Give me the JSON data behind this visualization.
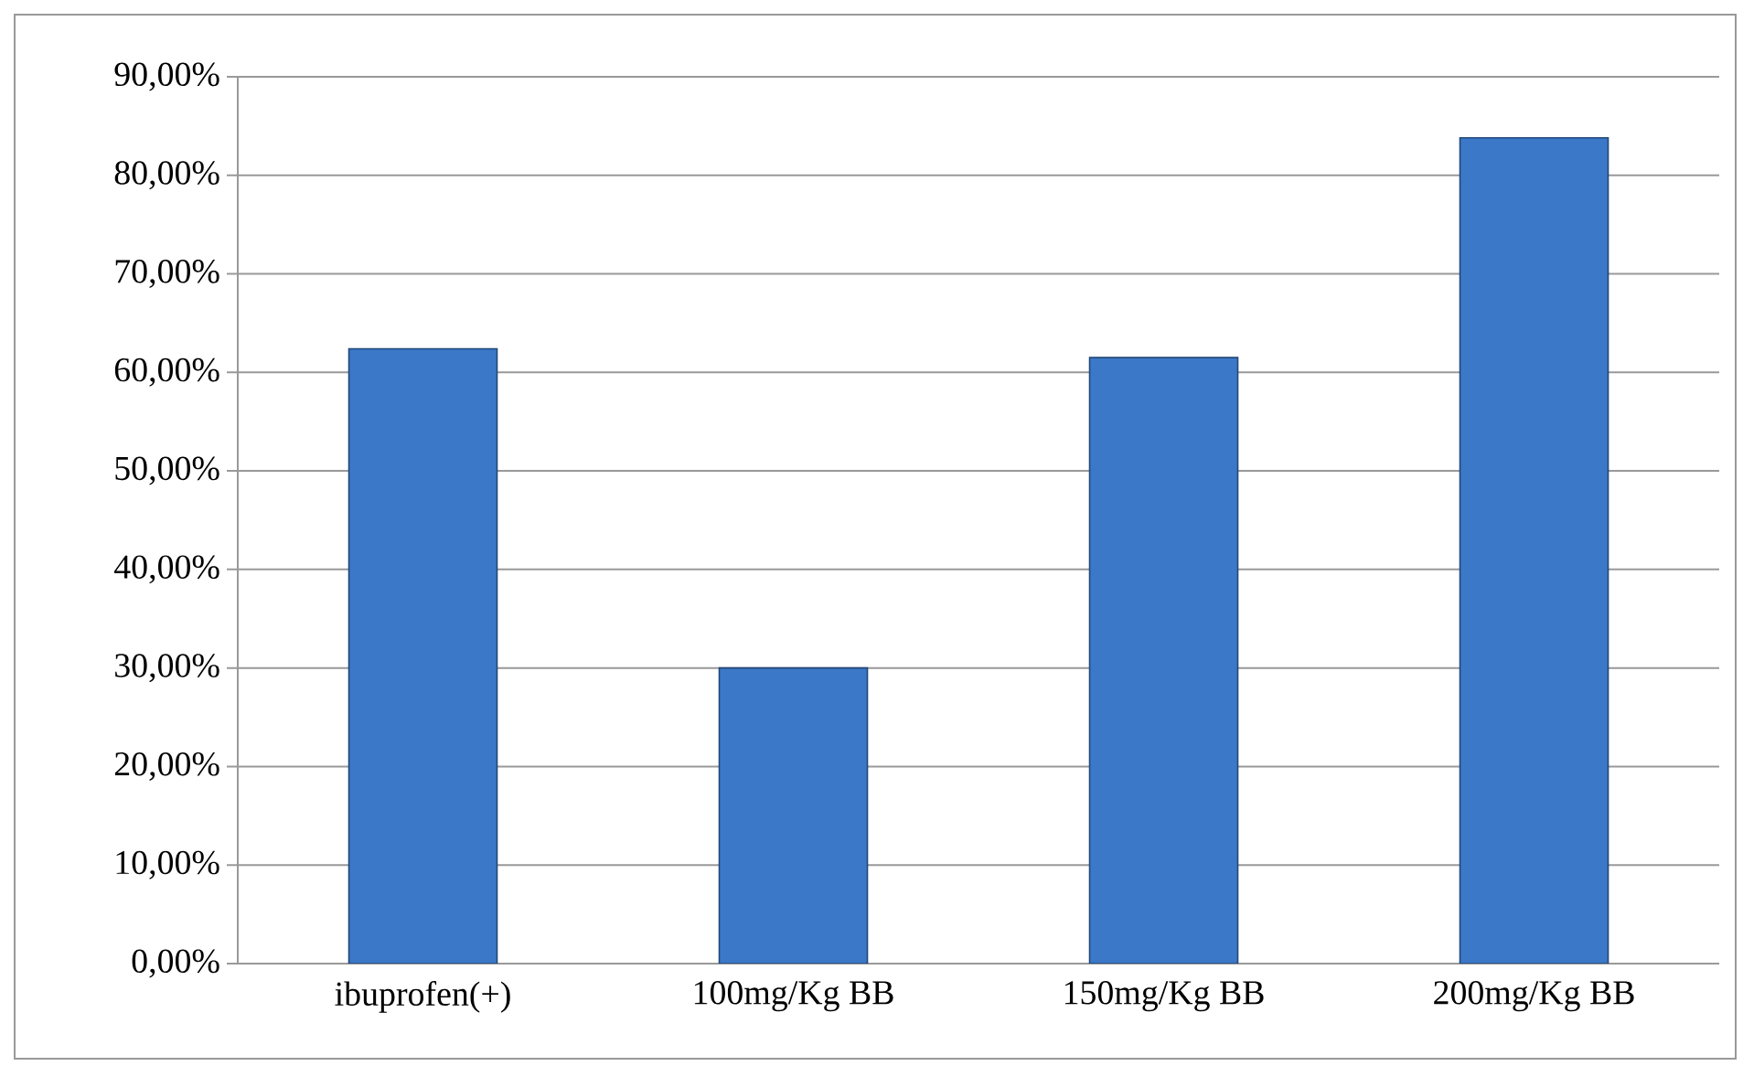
{
  "chart_data": {
    "type": "bar",
    "categories": [
      "ibuprofen(+)",
      "100mg/Kg BB",
      "150mg/Kg BB",
      "200mg/Kg BB"
    ],
    "values": [
      62.4,
      30,
      61.5,
      83.8
    ],
    "color": "#3b78c8",
    "ylim": [
      0,
      90
    ],
    "yticks": [
      {
        "value": 0,
        "label": "0,00%"
      },
      {
        "value": 10,
        "label": "10,00%"
      },
      {
        "value": 20,
        "label": "20,00%"
      },
      {
        "value": 30,
        "label": "30,00%"
      },
      {
        "value": 40,
        "label": "40,00%"
      },
      {
        "value": 50,
        "label": "50,00%"
      },
      {
        "value": 60,
        "label": "60,00%"
      },
      {
        "value": 70,
        "label": "70,00%"
      },
      {
        "value": 80,
        "label": "80,00%"
      },
      {
        "value": 90,
        "label": "90,00%"
      }
    ],
    "grid": "y"
  }
}
